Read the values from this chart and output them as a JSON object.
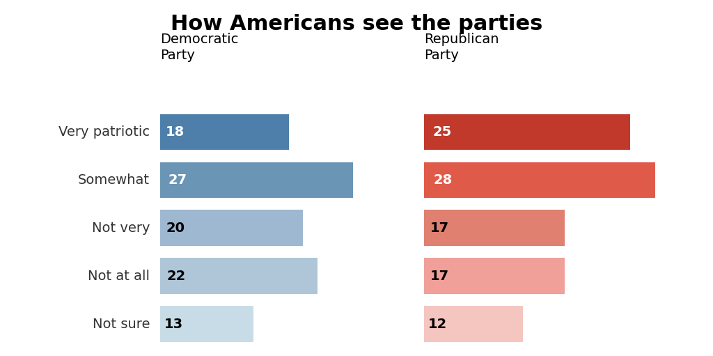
{
  "title": "How Americans see the parties",
  "categories": [
    "Very patriotic",
    "Somewhat",
    "Not very",
    "Not at all",
    "Not sure"
  ],
  "democratic_values": [
    18,
    27,
    20,
    22,
    13
  ],
  "republican_values": [
    25,
    28,
    17,
    17,
    12
  ],
  "dem_colors": [
    "#4d7faa",
    "#6a95b5",
    "#9db8d0",
    "#aec6d8",
    "#c8dce8"
  ],
  "rep_colors": [
    "#c0392b",
    "#e05a4a",
    "#e08070",
    "#f0a098",
    "#f5c5c0"
  ],
  "dem_label": "Democratic\nParty",
  "rep_label": "Republican\nParty",
  "dem_text_colors": [
    "white",
    "white",
    "black",
    "black",
    "black"
  ],
  "rep_text_colors": [
    "white",
    "white",
    "black",
    "black",
    "black"
  ],
  "background_color": "#ffffff",
  "title_fontsize": 22,
  "header_fontsize": 14,
  "cat_fontsize": 14,
  "value_fontsize": 14,
  "max_val": 32
}
